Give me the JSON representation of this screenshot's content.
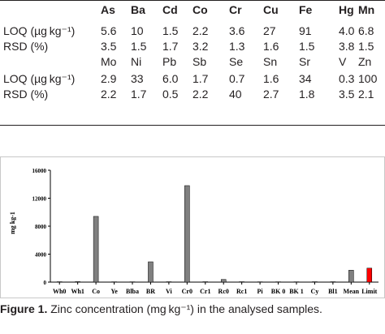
{
  "table": {
    "header": [
      "As",
      "Ba",
      "Cd",
      "Co",
      "Cr",
      "Cu",
      "Fe",
      "Hg",
      "Mn"
    ],
    "rows1": [
      {
        "label": "LOQ (µg kg⁻¹)",
        "values": [
          "5.6",
          "10",
          "1.5",
          "2.2",
          "3.6",
          "27",
          "91",
          "4.0",
          "6.8"
        ]
      },
      {
        "label": "RSD (%)",
        "values": [
          "3.5",
          "1.5",
          "1.7",
          "3.2",
          "1.3",
          "1.6",
          "1.5",
          "3.8",
          "1.5"
        ]
      }
    ],
    "header2": [
      "Mo",
      "Ni",
      "Pb",
      "Sb",
      "Se",
      "Sn",
      "Sr",
      "V",
      "Zn"
    ],
    "rows2": [
      {
        "label": "LOQ (µg kg⁻¹)",
        "values": [
          "2.9",
          "33",
          "6.0",
          "1.7",
          "0.7",
          "1.6",
          "34",
          "0.3",
          "100"
        ]
      },
      {
        "label": "RSD (%)",
        "values": [
          "2.2",
          "1.7",
          "0.5",
          "2.2",
          "40",
          "2.7",
          "1.8",
          "3.5",
          "2.1"
        ]
      }
    ]
  },
  "chart_data": {
    "type": "bar",
    "title": "",
    "xlabel": "",
    "ylabel": "mg kg-1",
    "ylim": [
      0,
      16000
    ],
    "yticks": [
      "0",
      "4000",
      "8000",
      "12000",
      "16000"
    ],
    "grid": false,
    "categories": [
      "Wh0",
      "Wh1",
      "Co",
      "Ye",
      "Blba",
      "BR",
      "Vi",
      "Cr0",
      "Cr1",
      "Rc0",
      "Rc1",
      "Pi",
      "BK 0",
      "BK 1",
      "Cy",
      "Bl1",
      "Mean",
      "Limit"
    ],
    "values": [
      60,
      70,
      9400,
      50,
      50,
      2900,
      60,
      13800,
      60,
      380,
      60,
      50,
      50,
      50,
      60,
      60,
      1700,
      2000
    ],
    "colors": {
      "bar": "#808080",
      "limit": "#ff0000"
    }
  },
  "caption": {
    "figure": "Figure 1.",
    "text": " Zinc concentration (mg kg⁻¹) in the analysed samples."
  }
}
